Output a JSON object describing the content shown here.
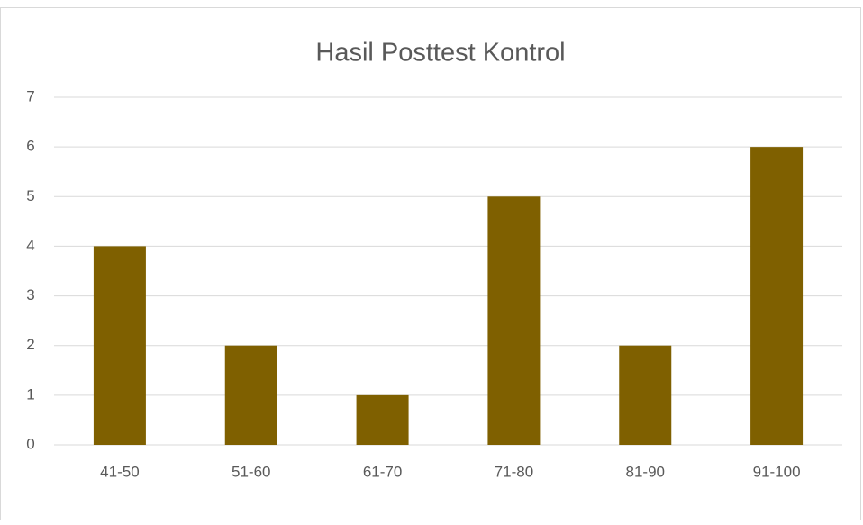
{
  "chart_data": {
    "type": "bar",
    "title": "Hasil Posttest Kontrol",
    "categories": [
      "41-50",
      "51-60",
      "61-70",
      "71-80",
      "81-90",
      "91-100"
    ],
    "values": [
      4,
      2,
      1,
      5,
      2,
      6
    ],
    "color": "#7f6000",
    "ylim": [
      0,
      7
    ],
    "yticks": [
      0,
      1,
      2,
      3,
      4,
      5,
      6,
      7
    ],
    "grid": true
  }
}
